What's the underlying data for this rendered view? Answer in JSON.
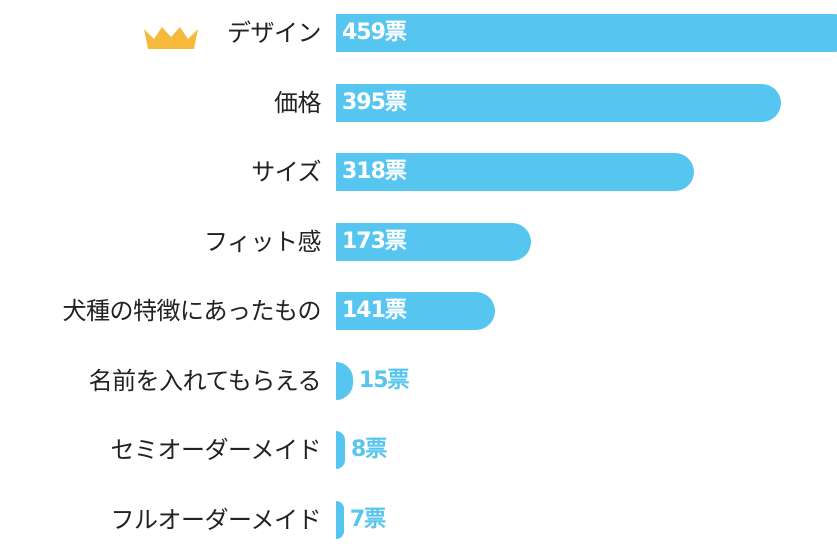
{
  "chart_data": {
    "type": "bar",
    "orientation": "horizontal",
    "categories": [
      "デザイン",
      "価格",
      "サイズ",
      "フィット感",
      "犬種の特徴にあったもの",
      "名前を入れてもらえる",
      "セミオーダーメイド",
      "フルオーダーメイド"
    ],
    "values": [
      459,
      395,
      318,
      173,
      141,
      15,
      8,
      7
    ],
    "value_labels": [
      "459票",
      "395票",
      "318票",
      "173票",
      "141票",
      "15票",
      "8票",
      "7票"
    ],
    "unit": "票",
    "title": "",
    "xlabel": "",
    "ylabel": "",
    "top_marker": "crown-icon",
    "colors": {
      "bar": "#56c5ef",
      "label_inside": "#ffffff",
      "label_outside": "#56c5ef",
      "crown": "#f6b93b"
    }
  }
}
